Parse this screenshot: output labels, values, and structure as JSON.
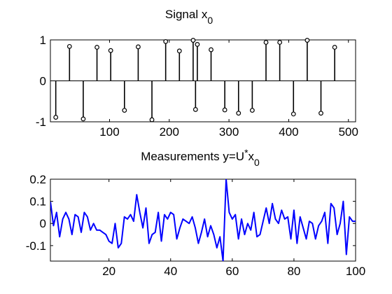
{
  "chart_data": [
    {
      "type": "stem",
      "title": "Signal x",
      "title_subscript": "0",
      "xlabel": "",
      "ylabel": "",
      "xlim": [
        1,
        512
      ],
      "ylim": [
        -1,
        1
      ],
      "xticks": [
        100,
        200,
        300,
        400,
        500
      ],
      "yticks": [
        -1,
        0,
        1
      ],
      "grid": false,
      "color": "#000000",
      "points": [
        {
          "x": 10,
          "y": -0.89
        },
        {
          "x": 33,
          "y": 0.84
        },
        {
          "x": 56,
          "y": -0.93
        },
        {
          "x": 79,
          "y": 0.82
        },
        {
          "x": 102,
          "y": 0.74
        },
        {
          "x": 125,
          "y": -0.72
        },
        {
          "x": 148,
          "y": 0.83
        },
        {
          "x": 171,
          "y": -0.95
        },
        {
          "x": 194,
          "y": 0.96
        },
        {
          "x": 217,
          "y": 0.73
        },
        {
          "x": 240,
          "y": 0.99
        },
        {
          "x": 244,
          "y": -0.7
        },
        {
          "x": 247,
          "y": 0.89
        },
        {
          "x": 270,
          "y": 0.76
        },
        {
          "x": 293,
          "y": -0.71
        },
        {
          "x": 316,
          "y": -0.79
        },
        {
          "x": 339,
          "y": -0.72
        },
        {
          "x": 362,
          "y": 0.94
        },
        {
          "x": 385,
          "y": 0.94
        },
        {
          "x": 408,
          "y": -0.81
        },
        {
          "x": 431,
          "y": 0.99
        },
        {
          "x": 454,
          "y": -0.79
        },
        {
          "x": 477,
          "y": 0.82
        }
      ]
    },
    {
      "type": "line",
      "title": "Measurements y=U",
      "title_superscript": "*",
      "title_after": "x",
      "title_subscript": "0",
      "xlabel": "",
      "ylabel": "",
      "xlim": [
        1,
        100
      ],
      "ylim": [
        -0.17,
        0.2
      ],
      "xticks": [
        20,
        40,
        60,
        80,
        100
      ],
      "yticks": [
        -0.1,
        0,
        0.1,
        0.2
      ],
      "ytick_labels": [
        "-0.1",
        "0",
        "0.1",
        "0.2"
      ],
      "grid": false,
      "color": "#0000ff",
      "x": [
        1,
        2,
        3,
        4,
        5,
        6,
        7,
        8,
        9,
        10,
        11,
        12,
        13,
        14,
        15,
        16,
        17,
        18,
        19,
        20,
        21,
        22,
        23,
        24,
        25,
        26,
        27,
        28,
        29,
        30,
        31,
        32,
        33,
        34,
        35,
        36,
        37,
        38,
        39,
        40,
        41,
        42,
        43,
        44,
        45,
        46,
        47,
        48,
        49,
        50,
        51,
        52,
        53,
        54,
        55,
        56,
        57,
        58,
        59,
        60,
        61,
        62,
        63,
        64,
        65,
        66,
        67,
        68,
        69,
        70,
        71,
        72,
        73,
        74,
        75,
        76,
        77,
        78,
        79,
        80,
        81,
        82,
        83,
        84,
        85,
        86,
        87,
        88,
        89,
        90,
        91,
        92,
        93,
        94,
        95,
        96,
        97,
        98,
        99,
        100
      ],
      "values": [
        0.1,
        -0.01,
        0.05,
        -0.06,
        0.02,
        0.05,
        0.02,
        -0.05,
        0.04,
        0.03,
        -0.04,
        0.05,
        0.03,
        -0.03,
        0.0,
        -0.03,
        -0.03,
        -0.04,
        -0.05,
        -0.08,
        -0.09,
        0.0,
        -0.11,
        -0.09,
        0.03,
        0.02,
        0.04,
        0.01,
        0.13,
        0.05,
        -0.02,
        0.07,
        -0.09,
        -0.05,
        -0.04,
        0.05,
        -0.08,
        0.04,
        0.02,
        0.05,
        0.04,
        -0.07,
        -0.02,
        0.02,
        0.01,
        0.0,
        0.03,
        -0.02,
        -0.09,
        -0.04,
        0.02,
        -0.06,
        -0.01,
        -0.05,
        -0.11,
        -0.06,
        -0.17,
        0.2,
        0.05,
        0.02,
        0.04,
        -0.07,
        0.02,
        -0.05,
        0.0,
        -0.03,
        0.05,
        -0.06,
        -0.05,
        0.01,
        0.07,
        0.0,
        0.09,
        0.02,
        0.0,
        0.06,
        0.02,
        0.03,
        -0.07,
        0.06,
        -0.09,
        0.03,
        -0.02,
        -0.07,
        0.01,
        0.0,
        -0.07,
        -0.01,
        0.01,
        0.05,
        -0.09,
        0.09,
        0.07,
        -0.05,
        0.0,
        0.1,
        -0.14,
        0.03,
        0.01,
        0.01
      ]
    }
  ]
}
